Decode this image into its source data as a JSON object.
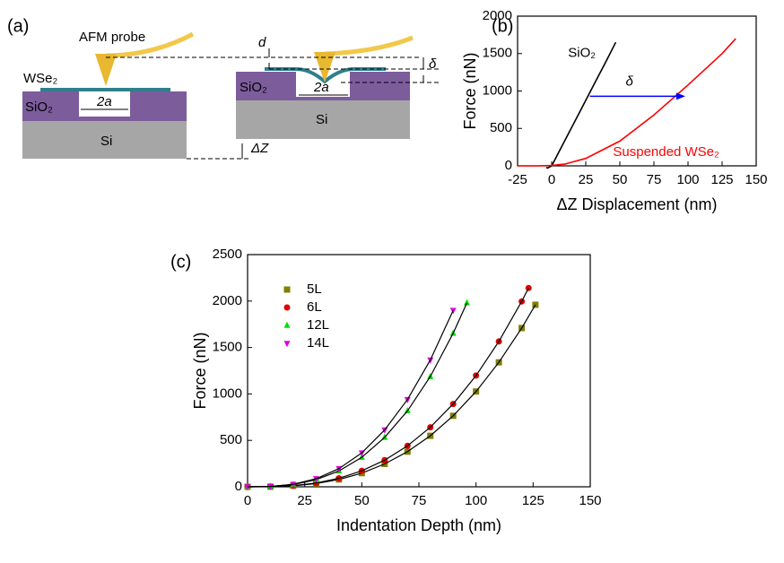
{
  "diagram": {
    "label": "(a)",
    "probe": "AFM probe",
    "dz": "ΔZ",
    "left": {
      "flake": "WSe₂",
      "oxide": "SiO₂",
      "hole": "2a",
      "substrate": "Si"
    },
    "right": {
      "d": "d",
      "delta": "δ",
      "oxide": "SiO₂",
      "hole": "2a",
      "substrate": "Si"
    }
  },
  "chart_data": [
    {
      "type": "line",
      "label": "(b)",
      "xlabel": "ΔZ Displacement (nm)",
      "ylabel": "Force (nN)",
      "annotation": "δ",
      "annotation_color": "#0000ff",
      "xlim": [
        -25,
        150
      ],
      "xticks": [
        -25,
        0,
        25,
        50,
        75,
        100,
        125,
        150
      ],
      "ylim": [
        0,
        2000
      ],
      "yticks": [
        0,
        500,
        1000,
        1500,
        2000
      ],
      "series": [
        {
          "name": "SiO₂",
          "color": "#000000",
          "x": [
            -4,
            -3,
            0,
            10,
            20,
            30,
            40,
            47
          ],
          "values": [
            -20,
            -30,
            0,
            350,
            700,
            1050,
            1400,
            1650
          ]
        },
        {
          "name": "Suspended WSe₂",
          "color": "#ff0000",
          "x": [
            -25,
            -10,
            0,
            10,
            25,
            50,
            75,
            100,
            125,
            135
          ],
          "values": [
            0,
            0,
            5,
            25,
            100,
            330,
            680,
            1080,
            1500,
            1700
          ]
        }
      ]
    },
    {
      "type": "scatter",
      "label": "(c)",
      "xlabel": "Indentation Depth (nm)",
      "ylabel": "Force (nN)",
      "fit_color": "#000000",
      "xlim": [
        0,
        150
      ],
      "xticks": [
        0,
        25,
        50,
        75,
        100,
        125,
        150
      ],
      "ylim": [
        0,
        2500
      ],
      "yticks": [
        0,
        500,
        1000,
        1500,
        2000,
        2500
      ],
      "series": [
        {
          "name": "5L",
          "color": "#808000",
          "marker": "square",
          "x": [
            0,
            10,
            20,
            30,
            40,
            50,
            60,
            70,
            80,
            90,
            100,
            110,
            120,
            126
          ],
          "values": [
            0,
            1.6,
            11,
            35,
            79,
            147,
            246,
            378,
            549,
            764,
            1026,
            1340,
            1709,
            1960
          ]
        },
        {
          "name": "6L",
          "color": "#e00000",
          "marker": "circle",
          "x": [
            0,
            10,
            20,
            30,
            40,
            50,
            60,
            70,
            80,
            90,
            100,
            110,
            120,
            123
          ],
          "values": [
            0,
            2,
            13,
            41,
            92,
            172,
            287,
            441,
            641,
            892,
            1198,
            1565,
            1996,
            2140
          ]
        },
        {
          "name": "12L",
          "color": "#00e000",
          "marker": "triangle-up",
          "x": [
            0,
            10,
            20,
            30,
            40,
            50,
            60,
            70,
            80,
            90,
            96
          ],
          "values": [
            0,
            3.5,
            24,
            76,
            171,
            318,
            532,
            818,
            1187,
            1653,
            1980
          ]
        },
        {
          "name": "14L",
          "color": "#e000e0",
          "marker": "triangle-down",
          "x": [
            0,
            10,
            20,
            30,
            40,
            50,
            60,
            70,
            80,
            90
          ],
          "values": [
            0,
            4,
            27,
            87,
            196,
            365,
            612,
            940,
            1365,
            1900
          ]
        }
      ]
    }
  ]
}
